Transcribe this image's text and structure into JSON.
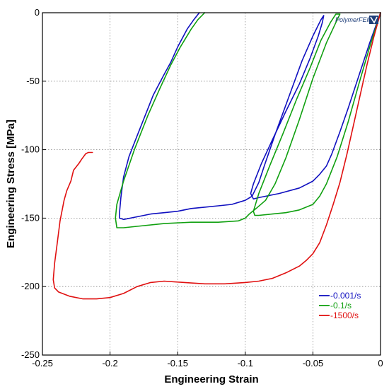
{
  "chart_data": {
    "type": "line",
    "title": "",
    "xlabel": "Engineering Strain",
    "ylabel": "Engineering Stress [MPa]",
    "xlim": [
      -0.25,
      0
    ],
    "ylim": [
      -250,
      0
    ],
    "xticks": [
      -0.25,
      -0.2,
      -0.15,
      -0.1,
      -0.05,
      0
    ],
    "yticks": [
      0,
      -50,
      -100,
      -150,
      -200,
      -250
    ],
    "grid": true,
    "legend_position": "bottom-right",
    "logo_text": "PolymerFEM",
    "series": [
      {
        "name": "-0.001/s",
        "color": "#1010c0",
        "points": [
          [
            0,
            0
          ],
          [
            -0.008,
            -22
          ],
          [
            -0.016,
            -46
          ],
          [
            -0.024,
            -70
          ],
          [
            -0.03,
            -87
          ],
          [
            -0.036,
            -103
          ],
          [
            -0.04,
            -112
          ],
          [
            -0.045,
            -118
          ],
          [
            -0.05,
            -123
          ],
          [
            -0.06,
            -128
          ],
          [
            -0.075,
            -132
          ],
          [
            -0.09,
            -135
          ],
          [
            -0.094,
            -136
          ],
          [
            -0.096,
            -132
          ],
          [
            -0.094,
            -125
          ],
          [
            -0.088,
            -110
          ],
          [
            -0.08,
            -93
          ],
          [
            -0.07,
            -72
          ],
          [
            -0.06,
            -52
          ],
          [
            -0.052,
            -33
          ],
          [
            -0.046,
            -17
          ],
          [
            -0.043,
            -7
          ],
          [
            -0.042,
            -2
          ],
          [
            -0.044,
            -5
          ],
          [
            -0.05,
            -17
          ],
          [
            -0.058,
            -35
          ],
          [
            -0.068,
            -62
          ],
          [
            -0.078,
            -89
          ],
          [
            -0.086,
            -112
          ],
          [
            -0.09,
            -124
          ],
          [
            -0.093,
            -130
          ],
          [
            -0.095,
            -134
          ],
          [
            -0.1,
            -137
          ],
          [
            -0.11,
            -140
          ],
          [
            -0.12,
            -141
          ],
          [
            -0.13,
            -142
          ],
          [
            -0.14,
            -143
          ],
          [
            -0.15,
            -145
          ],
          [
            -0.16,
            -146
          ],
          [
            -0.17,
            -147
          ],
          [
            -0.18,
            -149
          ],
          [
            -0.19,
            -151
          ],
          [
            -0.193,
            -150
          ],
          [
            -0.193,
            -146
          ],
          [
            -0.192,
            -135
          ],
          [
            -0.19,
            -120
          ],
          [
            -0.186,
            -105
          ],
          [
            -0.18,
            -90
          ],
          [
            -0.174,
            -75
          ],
          [
            -0.168,
            -60
          ],
          [
            -0.16,
            -45
          ],
          [
            -0.155,
            -36
          ],
          [
            -0.15,
            -25
          ],
          [
            -0.143,
            -12
          ],
          [
            -0.138,
            -5
          ],
          [
            -0.134,
            0
          ]
        ]
      },
      {
        "name": "-0.1/s",
        "color": "#10a010",
        "points": [
          [
            0,
            0
          ],
          [
            -0.008,
            -25
          ],
          [
            -0.016,
            -52
          ],
          [
            -0.024,
            -80
          ],
          [
            -0.032,
            -105
          ],
          [
            -0.04,
            -125
          ],
          [
            -0.045,
            -134
          ],
          [
            -0.05,
            -140
          ],
          [
            -0.06,
            -144
          ],
          [
            -0.07,
            -146
          ],
          [
            -0.08,
            -147
          ],
          [
            -0.09,
            -148
          ],
          [
            -0.093,
            -148
          ],
          [
            -0.094,
            -145
          ],
          [
            -0.09,
            -132
          ],
          [
            -0.082,
            -112
          ],
          [
            -0.072,
            -88
          ],
          [
            -0.062,
            -63
          ],
          [
            -0.052,
            -40
          ],
          [
            -0.044,
            -20
          ],
          [
            -0.037,
            -7
          ],
          [
            -0.033,
            -1
          ],
          [
            -0.03,
            -1
          ],
          [
            -0.032,
            -5
          ],
          [
            -0.04,
            -22
          ],
          [
            -0.05,
            -48
          ],
          [
            -0.06,
            -78
          ],
          [
            -0.07,
            -106
          ],
          [
            -0.078,
            -125
          ],
          [
            -0.085,
            -137
          ],
          [
            -0.092,
            -143
          ],
          [
            -0.097,
            -147
          ],
          [
            -0.1,
            -150
          ],
          [
            -0.105,
            -152
          ],
          [
            -0.12,
            -153
          ],
          [
            -0.14,
            -153
          ],
          [
            -0.16,
            -154
          ],
          [
            -0.18,
            -156
          ],
          [
            -0.19,
            -157
          ],
          [
            -0.195,
            -157
          ],
          [
            -0.196,
            -150
          ],
          [
            -0.195,
            -140
          ],
          [
            -0.19,
            -123
          ],
          [
            -0.182,
            -100
          ],
          [
            -0.172,
            -75
          ],
          [
            -0.163,
            -55
          ],
          [
            -0.155,
            -38
          ],
          [
            -0.148,
            -25
          ],
          [
            -0.14,
            -12
          ],
          [
            -0.135,
            -5
          ],
          [
            -0.13,
            0
          ]
        ]
      },
      {
        "name": "-1500/s",
        "color": "#e01010",
        "points": [
          [
            0,
            0
          ],
          [
            -0.005,
            -18
          ],
          [
            -0.01,
            -38
          ],
          [
            -0.015,
            -60
          ],
          [
            -0.02,
            -82
          ],
          [
            -0.025,
            -104
          ],
          [
            -0.03,
            -124
          ],
          [
            -0.035,
            -140
          ],
          [
            -0.04,
            -155
          ],
          [
            -0.045,
            -168
          ],
          [
            -0.05,
            -176
          ],
          [
            -0.055,
            -181
          ],
          [
            -0.06,
            -185
          ],
          [
            -0.07,
            -190
          ],
          [
            -0.08,
            -194
          ],
          [
            -0.09,
            -196
          ],
          [
            -0.1,
            -197
          ],
          [
            -0.115,
            -198
          ],
          [
            -0.13,
            -198
          ],
          [
            -0.145,
            -197
          ],
          [
            -0.16,
            -196
          ],
          [
            -0.17,
            -197
          ],
          [
            -0.18,
            -200
          ],
          [
            -0.19,
            -205
          ],
          [
            -0.2,
            -208
          ],
          [
            -0.21,
            -209
          ],
          [
            -0.22,
            -209
          ],
          [
            -0.23,
            -207
          ],
          [
            -0.238,
            -204
          ],
          [
            -0.241,
            -201
          ],
          [
            -0.242,
            -195
          ],
          [
            -0.241,
            -183
          ],
          [
            -0.239,
            -168
          ],
          [
            -0.237,
            -152
          ],
          [
            -0.234,
            -137
          ],
          [
            -0.232,
            -130
          ],
          [
            -0.229,
            -123
          ],
          [
            -0.227,
            -115
          ],
          [
            -0.223,
            -110
          ],
          [
            -0.221,
            -107
          ],
          [
            -0.218,
            -103
          ],
          [
            -0.216,
            -102
          ],
          [
            -0.213,
            -102
          ]
        ]
      }
    ]
  }
}
